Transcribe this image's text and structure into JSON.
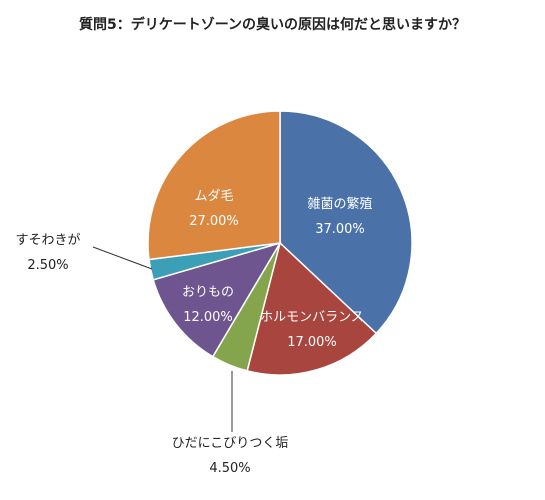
{
  "chart_data": {
    "type": "pie",
    "title": "質問5：デリケートゾーンの臭いの原因は何だと思いますか？",
    "categories": [
      "雑菌の繁殖",
      "ホルモンバランス",
      "ひだにこびりつく垢",
      "おりもの",
      "すそわきが",
      "ムダ毛"
    ],
    "values": [
      37.0,
      17.0,
      4.5,
      12.0,
      2.5,
      27.0
    ],
    "value_labels": [
      "37.00%",
      "17.00%",
      "4.50%",
      "12.00%",
      "2.50%",
      "27.00%"
    ],
    "colors": [
      "#4a72a8",
      "#a8453e",
      "#84a54c",
      "#6e5590",
      "#3b9fb8",
      "#dc8740"
    ],
    "label_colors": [
      "#ffffff",
      "#ffffff",
      "#222222",
      "#ffffff",
      "#222222",
      "#ffffff"
    ],
    "label_placement": [
      "inside",
      "inside",
      "outside",
      "inside",
      "outside",
      "inside"
    ],
    "start": "12 o'clock",
    "direction": "clockwise",
    "legend": "none"
  }
}
